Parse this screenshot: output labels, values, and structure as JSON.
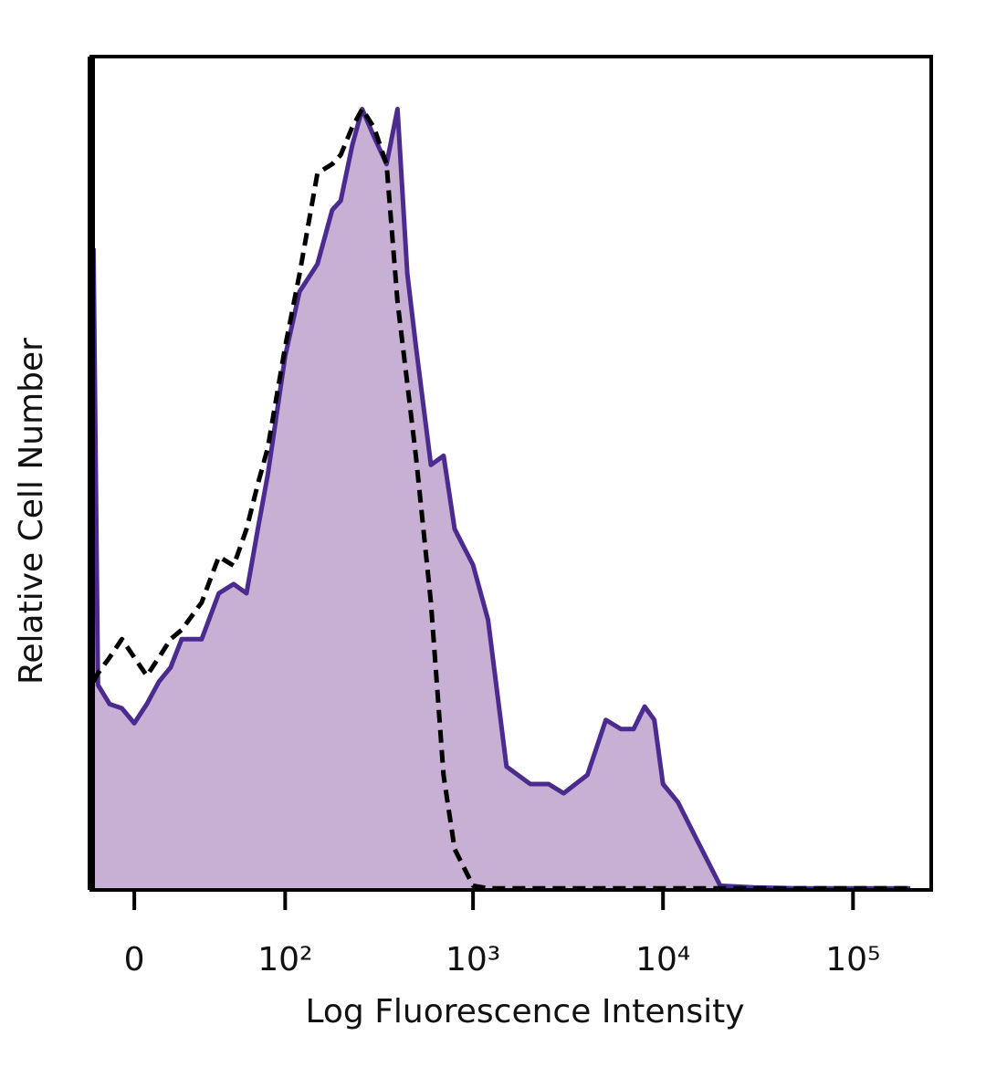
{
  "chart_data": {
    "type": "histogram-overlay",
    "x_label": "Log Fluorescence Intensity",
    "y_label": "Relative Cell Number",
    "xscale": "asinh",
    "xlim": [
      -18,
      258000
    ],
    "ylim": [
      0,
      100
    ],
    "xticks": [
      0,
      {
        "value": 100,
        "label": "10²"
      },
      {
        "value": 1000,
        "label": "10³"
      },
      {
        "value": 10000,
        "label": "10⁴"
      },
      {
        "value": 100000,
        "label": "10⁵"
      }
    ],
    "x": [
      -17,
      -15,
      -10,
      -5,
      0,
      5,
      10,
      15,
      20,
      30,
      40,
      50,
      60,
      70,
      80,
      100,
      120,
      150,
      180,
      200,
      230,
      260,
      300,
      350,
      400,
      450,
      500,
      600,
      700,
      800,
      1000,
      1200,
      1500,
      2000,
      2500,
      3000,
      4000,
      5000,
      6000,
      7000,
      8000,
      9000,
      10000,
      12000,
      15000,
      20000,
      30000,
      50000,
      100000,
      200000
    ],
    "series": [
      {
        "color": "#4b2b8f",
        "fill": "#c8b0d4",
        "style": "filled",
        "values": [
          77,
          24.6,
          22.3,
          21.8,
          20.0,
          22.3,
          25.0,
          26.7,
          30.1,
          30.1,
          35.6,
          36.7,
          35.6,
          43.3,
          49.9,
          64.1,
          71.8,
          75.1,
          81.6,
          82.7,
          89.3,
          93.7,
          90.4,
          87.1,
          93.7,
          74.0,
          65.2,
          51.0,
          52.1,
          43.3,
          39.0,
          32.4,
          14.8,
          12.7,
          12.7,
          11.6,
          13.8,
          20.4,
          19.3,
          19.3,
          22.0,
          20.4,
          12.7,
          10.5,
          6.1,
          0.5,
          0.3,
          0.2,
          0.2,
          0.2
        ]
      },
      {
        "color": "#000000",
        "style": "dashed",
        "values": [
          25,
          26,
          27.9,
          30.1,
          27.9,
          25.7,
          27.9,
          30.1,
          31.2,
          34.5,
          40.0,
          38.9,
          43.3,
          48.7,
          53.1,
          65.2,
          73.9,
          86.0,
          87.1,
          88.2,
          91.5,
          93.7,
          91.5,
          87.1,
          70.6,
          60.8,
          52.0,
          34.5,
          13.7,
          4.9,
          0.5,
          0.2,
          0.2,
          0.2,
          0.2,
          0.2,
          0.2,
          0.2,
          0.2,
          0.2,
          0.2,
          0.2,
          0.2,
          0.2,
          0.2,
          0.2,
          0.2,
          0.2,
          0.2,
          0.2
        ]
      }
    ]
  }
}
